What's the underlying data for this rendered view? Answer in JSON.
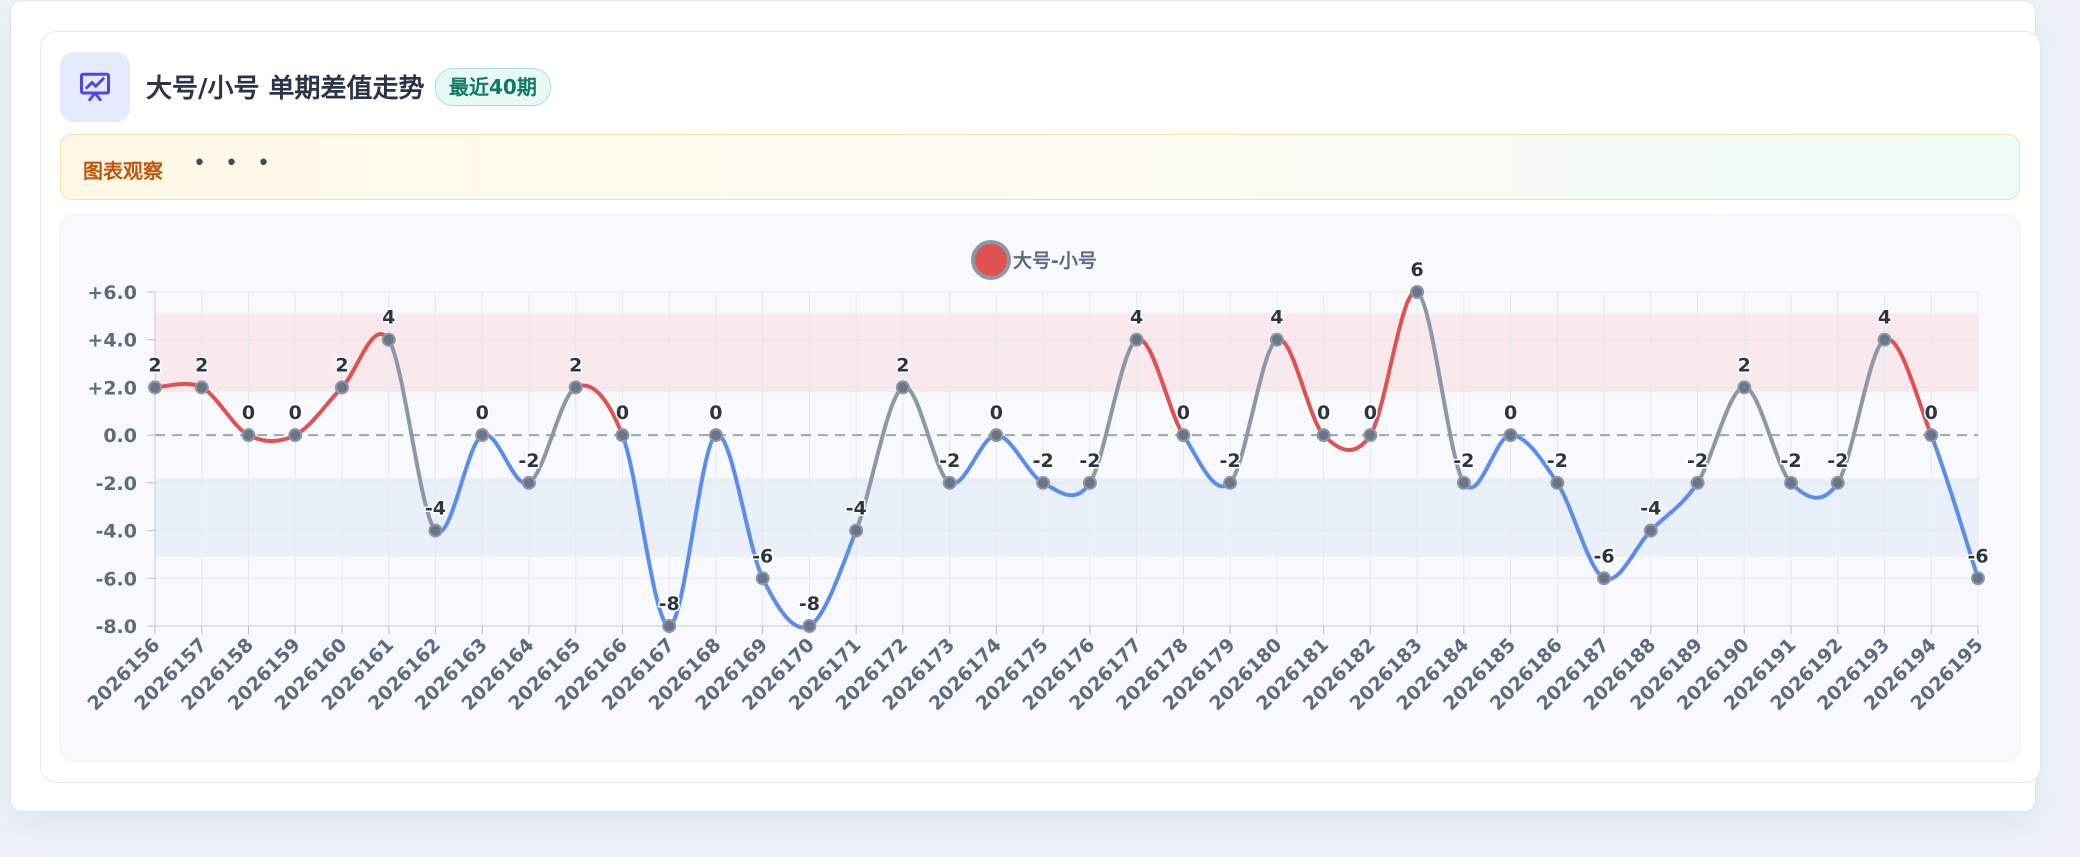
{
  "header": {
    "title": "大号/小号 单期差值走势",
    "badge": "最近40期",
    "icon": "presentation-chart-icon"
  },
  "observation": {
    "label": "图表观察",
    "dots": "• • •"
  },
  "colors": {
    "positive": "#e05252",
    "negative": "#5b8def",
    "neutral": "#8e97a8",
    "accent_icon": "#4f46e5",
    "positive_band": "#f8e6ea",
    "negative_band": "#e8eefa"
  },
  "chart_data": {
    "type": "line",
    "title": "",
    "xlabel": "",
    "ylabel": "",
    "ylim": [
      -8,
      6
    ],
    "yticks": [
      6,
      4,
      2,
      0,
      -2,
      -4,
      -6,
      -8
    ],
    "ytick_labels": [
      "+6.0",
      "+4.0",
      "+2.0",
      "0.0",
      "-2.0",
      "-4.0",
      "-6.0",
      "-8.0"
    ],
    "legend_position": "top-center",
    "grid": true,
    "bands": [
      {
        "from": 1.8,
        "to": 5.1,
        "color": "positive"
      },
      {
        "from": -5.1,
        "to": -1.8,
        "color": "negative"
      }
    ],
    "categories": [
      "2026156",
      "2026157",
      "2026158",
      "2026159",
      "2026160",
      "2026161",
      "2026162",
      "2026163",
      "2026164",
      "2026165",
      "2026166",
      "2026167",
      "2026168",
      "2026169",
      "2026170",
      "2026171",
      "2026172",
      "2026173",
      "2026174",
      "2026175",
      "2026176",
      "2026177",
      "2026178",
      "2026179",
      "2026180",
      "2026181",
      "2026182",
      "2026183",
      "2026184",
      "2026185",
      "2026186",
      "2026187",
      "2026188",
      "2026189",
      "2026190",
      "2026191",
      "2026192",
      "2026193",
      "2026194",
      "2026195"
    ],
    "series": [
      {
        "name": "大号-小号",
        "values": [
          2,
          2,
          0,
          0,
          2,
          4,
          -4,
          0,
          -2,
          2,
          0,
          -8,
          0,
          -6,
          -8,
          -4,
          2,
          -2,
          0,
          -2,
          -2,
          4,
          0,
          -2,
          4,
          0,
          0,
          6,
          -2,
          0,
          -2,
          -6,
          -4,
          -2,
          2,
          -2,
          -2,
          4,
          0,
          -6
        ]
      }
    ]
  }
}
